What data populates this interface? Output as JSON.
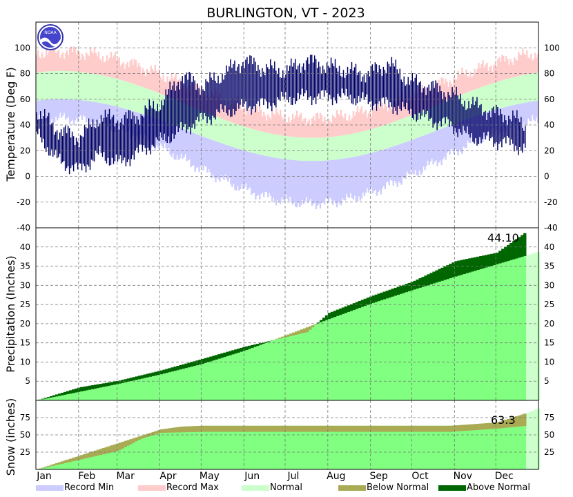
{
  "chart_data": [
    {
      "type": "bar",
      "title": "BURLINGTON, VT - 2023",
      "ylabel": "Temperature (Deg F)",
      "ylim": [
        -40,
        120
      ],
      "yticks": [
        -40,
        -20,
        0,
        20,
        40,
        60,
        80,
        100
      ],
      "grid": true,
      "x_categories": [
        "Jan",
        "Feb",
        "Mar",
        "Apr",
        "May",
        "Jun",
        "Jul",
        "Aug",
        "Sep",
        "Oct",
        "Nov",
        "Dec"
      ],
      "x_days_per_category": [
        31,
        28,
        31,
        30,
        31,
        30,
        31,
        31,
        30,
        31,
        30,
        31
      ],
      "data_through_day": 356,
      "seasonal_profile": {
        "peak_day": 200,
        "record_min": {
          "mean": 12,
          "amplitude": 33
        },
        "normal_min": {
          "mean": 36,
          "amplitude": 24
        },
        "normal_max": {
          "mean": 56,
          "amplitude": 26
        },
        "record_max": {
          "mean": 71,
          "amplitude": 26
        }
      },
      "observed_daily_low_high": {
        "sample_interval_days": 15,
        "samples": [
          [
            1,
            32,
            50
          ],
          [
            16,
            12,
            36
          ],
          [
            31,
            5,
            30
          ],
          [
            46,
            17,
            46
          ],
          [
            61,
            10,
            44
          ],
          [
            76,
            20,
            48
          ],
          [
            91,
            28,
            58
          ],
          [
            106,
            36,
            78
          ],
          [
            121,
            45,
            70
          ],
          [
            136,
            50,
            80
          ],
          [
            151,
            54,
            90
          ],
          [
            166,
            56,
            84
          ],
          [
            181,
            60,
            82
          ],
          [
            196,
            62,
            90
          ],
          [
            211,
            62,
            86
          ],
          [
            226,
            62,
            82
          ],
          [
            241,
            58,
            80
          ],
          [
            256,
            56,
            88
          ],
          [
            271,
            50,
            74
          ],
          [
            286,
            44,
            70
          ],
          [
            301,
            40,
            64
          ],
          [
            316,
            30,
            56
          ],
          [
            331,
            28,
            50
          ],
          [
            346,
            25,
            46
          ],
          [
            356,
            20,
            38
          ]
        ]
      },
      "series_names": [
        "Record Min",
        "Record Max",
        "Normal"
      ],
      "colors": {
        "record_min": "#ccccff",
        "record_max": "#ffcccc",
        "normal": "#ccffcc",
        "observed": "#000066"
      }
    },
    {
      "type": "area",
      "ylabel": "Precipitation (Inches)",
      "ylim": [
        0,
        45
      ],
      "yticks": [
        5,
        10,
        15,
        20,
        25,
        30,
        35,
        40
      ],
      "grid": true,
      "annotation": "44.10",
      "normal_cumulative": {
        "x": [
          0,
          59,
          90,
          120,
          151,
          181,
          212,
          243,
          273,
          304,
          334,
          365
        ],
        "y": [
          0,
          4.3,
          6.8,
          9.5,
          13.0,
          17.0,
          21.2,
          25.3,
          28.8,
          32.3,
          35.5,
          38.8
        ]
      },
      "observed_cumulative": {
        "x": [
          0,
          31,
          59,
          90,
          120,
          151,
          181,
          196,
          212,
          243,
          273,
          304,
          334,
          356
        ],
        "y": [
          0,
          3.4,
          5.1,
          7.8,
          10.8,
          14.0,
          16.5,
          17.8,
          22.8,
          27.2,
          31.0,
          36.3,
          38.5,
          44.1
        ]
      },
      "colors": {
        "normal": "#80ff80",
        "normal_beyond": "#ccffcc",
        "above_normal": "#006600",
        "below_normal": "#aaaa55"
      }
    },
    {
      "type": "area",
      "ylabel": "Snow (inches)",
      "ylim": [
        0,
        100
      ],
      "yticks": [
        25,
        50,
        75
      ],
      "grid": true,
      "annotation": "63.3",
      "normal_cumulative": {
        "x": [
          0,
          31,
          59,
          90,
          105,
          120,
          300,
          334,
          356,
          365
        ],
        "y": [
          0,
          20,
          38,
          58,
          62,
          63.2,
          63.2,
          68,
          82,
          89
        ]
      },
      "observed_cumulative": {
        "x": [
          0,
          31,
          59,
          75,
          90,
          120,
          300,
          334,
          356
        ],
        "y": [
          0,
          14,
          27,
          44,
          53,
          54.4,
          54.4,
          59,
          63.3
        ]
      },
      "colors": {
        "normal": "#80ff80",
        "normal_beyond": "#ccffcc",
        "above_normal": "#006600",
        "below_normal": "#aaaa55"
      }
    }
  ],
  "legend": {
    "placement": "bottom",
    "entries": [
      {
        "label": "Record Min",
        "color": "#ccccff"
      },
      {
        "label": "Record Max",
        "color": "#ffcccc"
      },
      {
        "label": "Normal",
        "color": "#ccffcc"
      },
      {
        "label": "Below Normal",
        "color": "#aaaa55"
      },
      {
        "label": "Above Normal",
        "color": "#006600"
      }
    ]
  },
  "logo": {
    "text": "NOAA",
    "color": "#3333aa"
  }
}
